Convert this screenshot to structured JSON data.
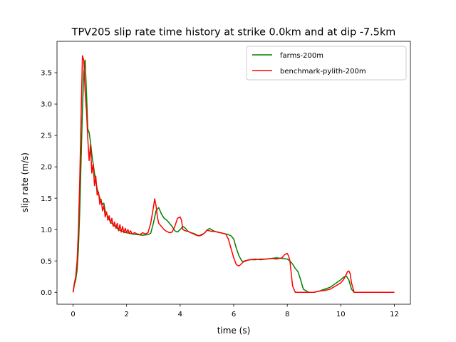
{
  "chart_data": {
    "type": "line",
    "title": "TPV205 slip rate time history at strike 0.0km and at dip -7.5km",
    "xlabel": "time (s)",
    "ylabel": "slip rate (m/s)",
    "xlim": [
      -0.6,
      12.6
    ],
    "ylim": [
      -0.19,
      4.0
    ],
    "xticks": [
      0,
      2,
      4,
      6,
      8,
      10,
      12
    ],
    "xtick_labels": [
      "0",
      "2",
      "4",
      "6",
      "8",
      "10",
      "12"
    ],
    "yticks": [
      0.0,
      0.5,
      1.0,
      1.5,
      2.0,
      2.5,
      3.0,
      3.5
    ],
    "ytick_labels": [
      "0.0",
      "0.5",
      "1.0",
      "1.5",
      "2.0",
      "2.5",
      "3.0",
      "3.5"
    ],
    "grid": false,
    "legend_position": "upper right",
    "series": [
      {
        "name": "farms-200m",
        "color": "#008000",
        "x": [
          0,
          0.05,
          0.1,
          0.15,
          0.2,
          0.25,
          0.3,
          0.35,
          0.4,
          0.45,
          0.5,
          0.55,
          0.6,
          0.65,
          0.7,
          0.8,
          0.9,
          1.0,
          1.1,
          1.15,
          1.2,
          1.3,
          1.4,
          1.5,
          1.6,
          1.7,
          1.8,
          1.9,
          2.0,
          2.2,
          2.4,
          2.6,
          2.8,
          2.9,
          3.0,
          3.1,
          3.2,
          3.3,
          3.4,
          3.5,
          3.6,
          3.7,
          3.8,
          3.9,
          4.0,
          4.1,
          4.2,
          4.3,
          4.4,
          4.5,
          4.6,
          4.7,
          4.8,
          4.9,
          5.0,
          5.1,
          5.2,
          5.3,
          5.4,
          5.5,
          5.6,
          5.7,
          5.8,
          5.9,
          6.0,
          6.1,
          6.2,
          6.3,
          6.4,
          6.5,
          6.6,
          6.8,
          7.0,
          7.2,
          7.4,
          7.6,
          7.8,
          8.0,
          8.1,
          8.2,
          8.3,
          8.4,
          8.5,
          8.6,
          8.8,
          9.0,
          9.2,
          9.4,
          9.6,
          9.8,
          10.0,
          10.1,
          10.2,
          10.3,
          10.4,
          10.5,
          11.0,
          11.5,
          12.0
        ],
        "y": [
          0.0,
          0.12,
          0.2,
          0.35,
          0.7,
          1.3,
          2.1,
          2.9,
          3.5,
          3.7,
          3.2,
          2.6,
          2.55,
          2.4,
          2.2,
          1.9,
          1.65,
          1.5,
          1.4,
          1.42,
          1.3,
          1.2,
          1.12,
          1.08,
          1.04,
          1.0,
          0.98,
          0.96,
          0.95,
          0.93,
          0.92,
          0.91,
          0.92,
          0.94,
          1.1,
          1.3,
          1.35,
          1.25,
          1.18,
          1.15,
          1.1,
          1.05,
          0.98,
          0.96,
          1.0,
          1.05,
          1.02,
          0.97,
          0.95,
          0.94,
          0.92,
          0.9,
          0.92,
          0.94,
          0.99,
          1.02,
          0.99,
          0.97,
          0.96,
          0.95,
          0.94,
          0.93,
          0.92,
          0.9,
          0.85,
          0.7,
          0.58,
          0.5,
          0.49,
          0.51,
          0.52,
          0.52,
          0.53,
          0.53,
          0.54,
          0.55,
          0.54,
          0.53,
          0.5,
          0.45,
          0.38,
          0.33,
          0.2,
          0.05,
          0.0,
          0.0,
          0.02,
          0.05,
          0.08,
          0.14,
          0.2,
          0.24,
          0.26,
          0.2,
          0.05,
          0.0,
          0.0,
          0.0,
          0.0
        ]
      },
      {
        "name": "benchmark-pylith-200m",
        "color": "#ff0000",
        "x": [
          0,
          0.05,
          0.1,
          0.15,
          0.2,
          0.25,
          0.3,
          0.35,
          0.4,
          0.45,
          0.5,
          0.55,
          0.6,
          0.65,
          0.7,
          0.75,
          0.8,
          0.85,
          0.9,
          0.95,
          1.0,
          1.05,
          1.1,
          1.15,
          1.2,
          1.25,
          1.3,
          1.35,
          1.4,
          1.45,
          1.5,
          1.55,
          1.6,
          1.65,
          1.7,
          1.75,
          1.8,
          1.85,
          1.9,
          1.95,
          2.0,
          2.05,
          2.1,
          2.15,
          2.2,
          2.3,
          2.4,
          2.5,
          2.6,
          2.7,
          2.8,
          2.9,
          3.0,
          3.05,
          3.1,
          3.15,
          3.2,
          3.3,
          3.4,
          3.5,
          3.6,
          3.7,
          3.8,
          3.9,
          4.0,
          4.05,
          4.1,
          4.2,
          4.3,
          4.4,
          4.5,
          4.6,
          4.7,
          4.8,
          4.9,
          5.0,
          5.1,
          5.2,
          5.3,
          5.4,
          5.5,
          5.6,
          5.7,
          5.8,
          5.9,
          6.0,
          6.1,
          6.2,
          6.3,
          6.4,
          6.5,
          6.6,
          6.8,
          7.0,
          7.2,
          7.4,
          7.6,
          7.8,
          7.9,
          8.0,
          8.05,
          8.1,
          8.15,
          8.2,
          8.3,
          8.5,
          8.7,
          9.0,
          9.2,
          9.4,
          9.6,
          9.8,
          10.0,
          10.1,
          10.2,
          10.25,
          10.3,
          10.35,
          10.4,
          10.5,
          11.0,
          11.5,
          12.0
        ],
        "y": [
          0.0,
          0.15,
          0.25,
          0.5,
          1.0,
          1.8,
          2.8,
          3.77,
          3.7,
          3.2,
          2.9,
          2.45,
          2.1,
          2.35,
          1.9,
          2.05,
          1.7,
          1.85,
          1.55,
          1.6,
          1.4,
          1.48,
          1.3,
          1.38,
          1.2,
          1.28,
          1.15,
          1.22,
          1.1,
          1.18,
          1.05,
          1.12,
          1.02,
          1.1,
          0.98,
          1.08,
          0.96,
          1.05,
          0.95,
          1.02,
          0.95,
          1.0,
          0.94,
          0.98,
          0.93,
          0.95,
          0.93,
          0.92,
          0.95,
          0.93,
          0.95,
          1.1,
          1.35,
          1.49,
          1.38,
          1.2,
          1.1,
          1.05,
          1.0,
          0.97,
          0.95,
          0.96,
          1.05,
          1.18,
          1.2,
          1.15,
          1.0,
          0.98,
          0.97,
          0.95,
          0.93,
          0.91,
          0.9,
          0.91,
          0.94,
          0.99,
          0.98,
          0.97,
          0.97,
          0.96,
          0.95,
          0.94,
          0.93,
          0.85,
          0.7,
          0.55,
          0.44,
          0.42,
          0.46,
          0.5,
          0.51,
          0.52,
          0.53,
          0.52,
          0.53,
          0.54,
          0.53,
          0.55,
          0.6,
          0.62,
          0.58,
          0.5,
          0.3,
          0.1,
          0.0,
          0.0,
          0.0,
          0.0,
          0.02,
          0.03,
          0.05,
          0.1,
          0.15,
          0.2,
          0.28,
          0.33,
          0.34,
          0.3,
          0.15,
          0.0,
          0.0,
          0.0,
          0.0
        ]
      }
    ]
  }
}
